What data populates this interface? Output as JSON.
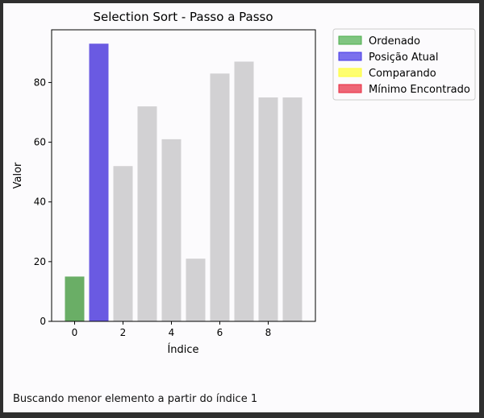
{
  "status_text": "Buscando menor elemento a partir do índice 1",
  "chart_data": {
    "type": "bar",
    "title": "Selection Sort - Passo a Passo",
    "xlabel": "Índice",
    "ylabel": "Valor",
    "categories": [
      0,
      1,
      2,
      3,
      4,
      5,
      6,
      7,
      8,
      9
    ],
    "values": [
      15,
      93,
      52,
      72,
      61,
      21,
      83,
      87,
      75,
      75
    ],
    "bar_states": [
      "Ordenado",
      "Posição Atual",
      "default",
      "default",
      "default",
      "default",
      "default",
      "default",
      "default",
      "default"
    ],
    "xticks": [
      0,
      2,
      4,
      6,
      8
    ],
    "yticks": [
      0,
      20,
      40,
      60,
      80
    ],
    "ylim": [
      0,
      97.65
    ],
    "xlim": [
      -0.95,
      9.95
    ],
    "grid": false,
    "legend_position": "outside-right",
    "legend": [
      {
        "label": "Ordenado",
        "color": "#4cae4c"
      },
      {
        "label": "Posição Atual",
        "color": "#4536e6"
      },
      {
        "label": "Comparando",
        "color": "#ffff33"
      },
      {
        "label": "Mínimo Encontrado",
        "color": "#e8283d"
      }
    ],
    "colors": {
      "Ordenado": "#6aae66",
      "Posição Atual": "#6a5ae2",
      "default": "#d2d1d3"
    }
  }
}
